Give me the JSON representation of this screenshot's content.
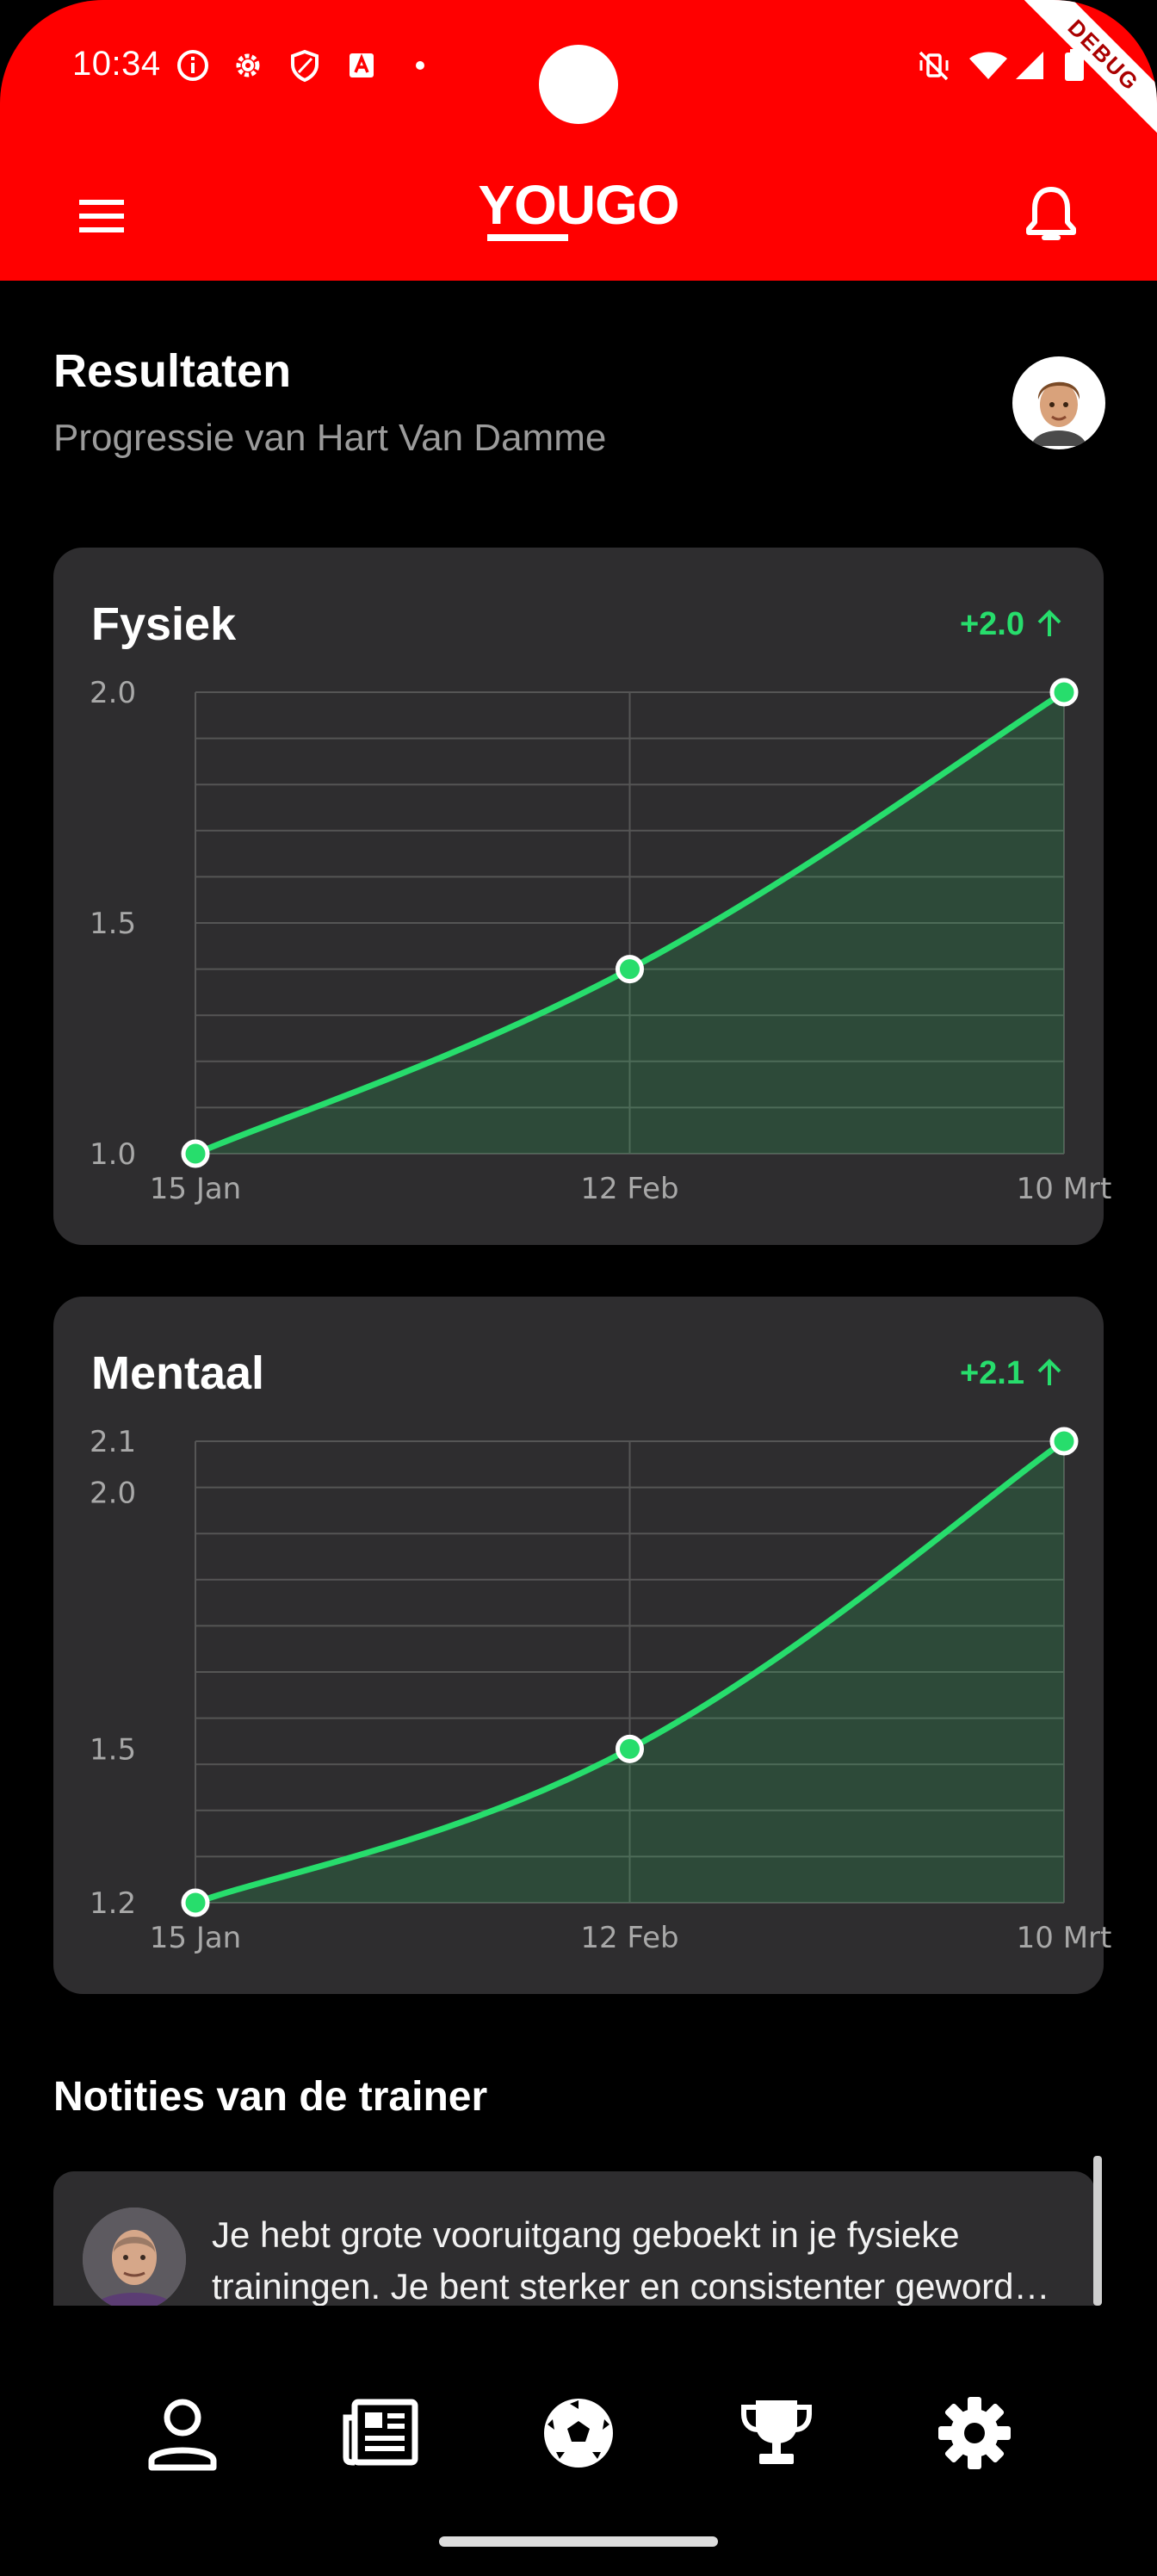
{
  "status_bar": {
    "time": "10:34",
    "debug_label": "DEBUG"
  },
  "app_bar": {
    "logo_text": "YOUGO",
    "menu_icon": "menu-icon",
    "bell_icon": "bell-icon"
  },
  "header": {
    "title": "Resultaten",
    "subtitle": "Progressie van Hart Van Damme"
  },
  "colors": {
    "accent": "#27dd6c",
    "brand": "#ff0000",
    "card": "#2e2d2f"
  },
  "chart_data": [
    {
      "type": "area",
      "title": "Fysiek",
      "delta": "+2.0",
      "x": [
        "15 Jan",
        "12 Feb",
        "10 Mrt"
      ],
      "y": [
        1.0,
        1.4,
        2.0
      ],
      "ylim": [
        1.0,
        2.0
      ],
      "y_ticks": [
        "1.0",
        "1.5",
        "2.0"
      ],
      "y_tick_values": [
        1.0,
        1.5,
        2.0
      ],
      "grid": true
    },
    {
      "type": "area",
      "title": "Mentaal",
      "delta": "+2.1",
      "x": [
        "15 Jan",
        "12 Feb",
        "10 Mrt"
      ],
      "y": [
        1.2,
        1.5,
        2.1
      ],
      "ylim": [
        1.2,
        2.1
      ],
      "y_ticks": [
        "1.2",
        "1.5",
        "2.0",
        "2.1"
      ],
      "y_tick_values": [
        1.2,
        1.5,
        2.0,
        2.1
      ],
      "grid": true
    }
  ],
  "notes": {
    "title": "Notities van de trainer",
    "items": [
      {
        "line1": "Je hebt grote vooruitgang geboekt in je fysieke",
        "line2": "trainingen. Je bent sterker en consistenter geword…"
      }
    ]
  },
  "bottom_nav": [
    {
      "icon": "person-icon"
    },
    {
      "icon": "news-icon"
    },
    {
      "icon": "soccer-ball-icon"
    },
    {
      "icon": "trophy-icon"
    },
    {
      "icon": "gear-icon"
    }
  ]
}
